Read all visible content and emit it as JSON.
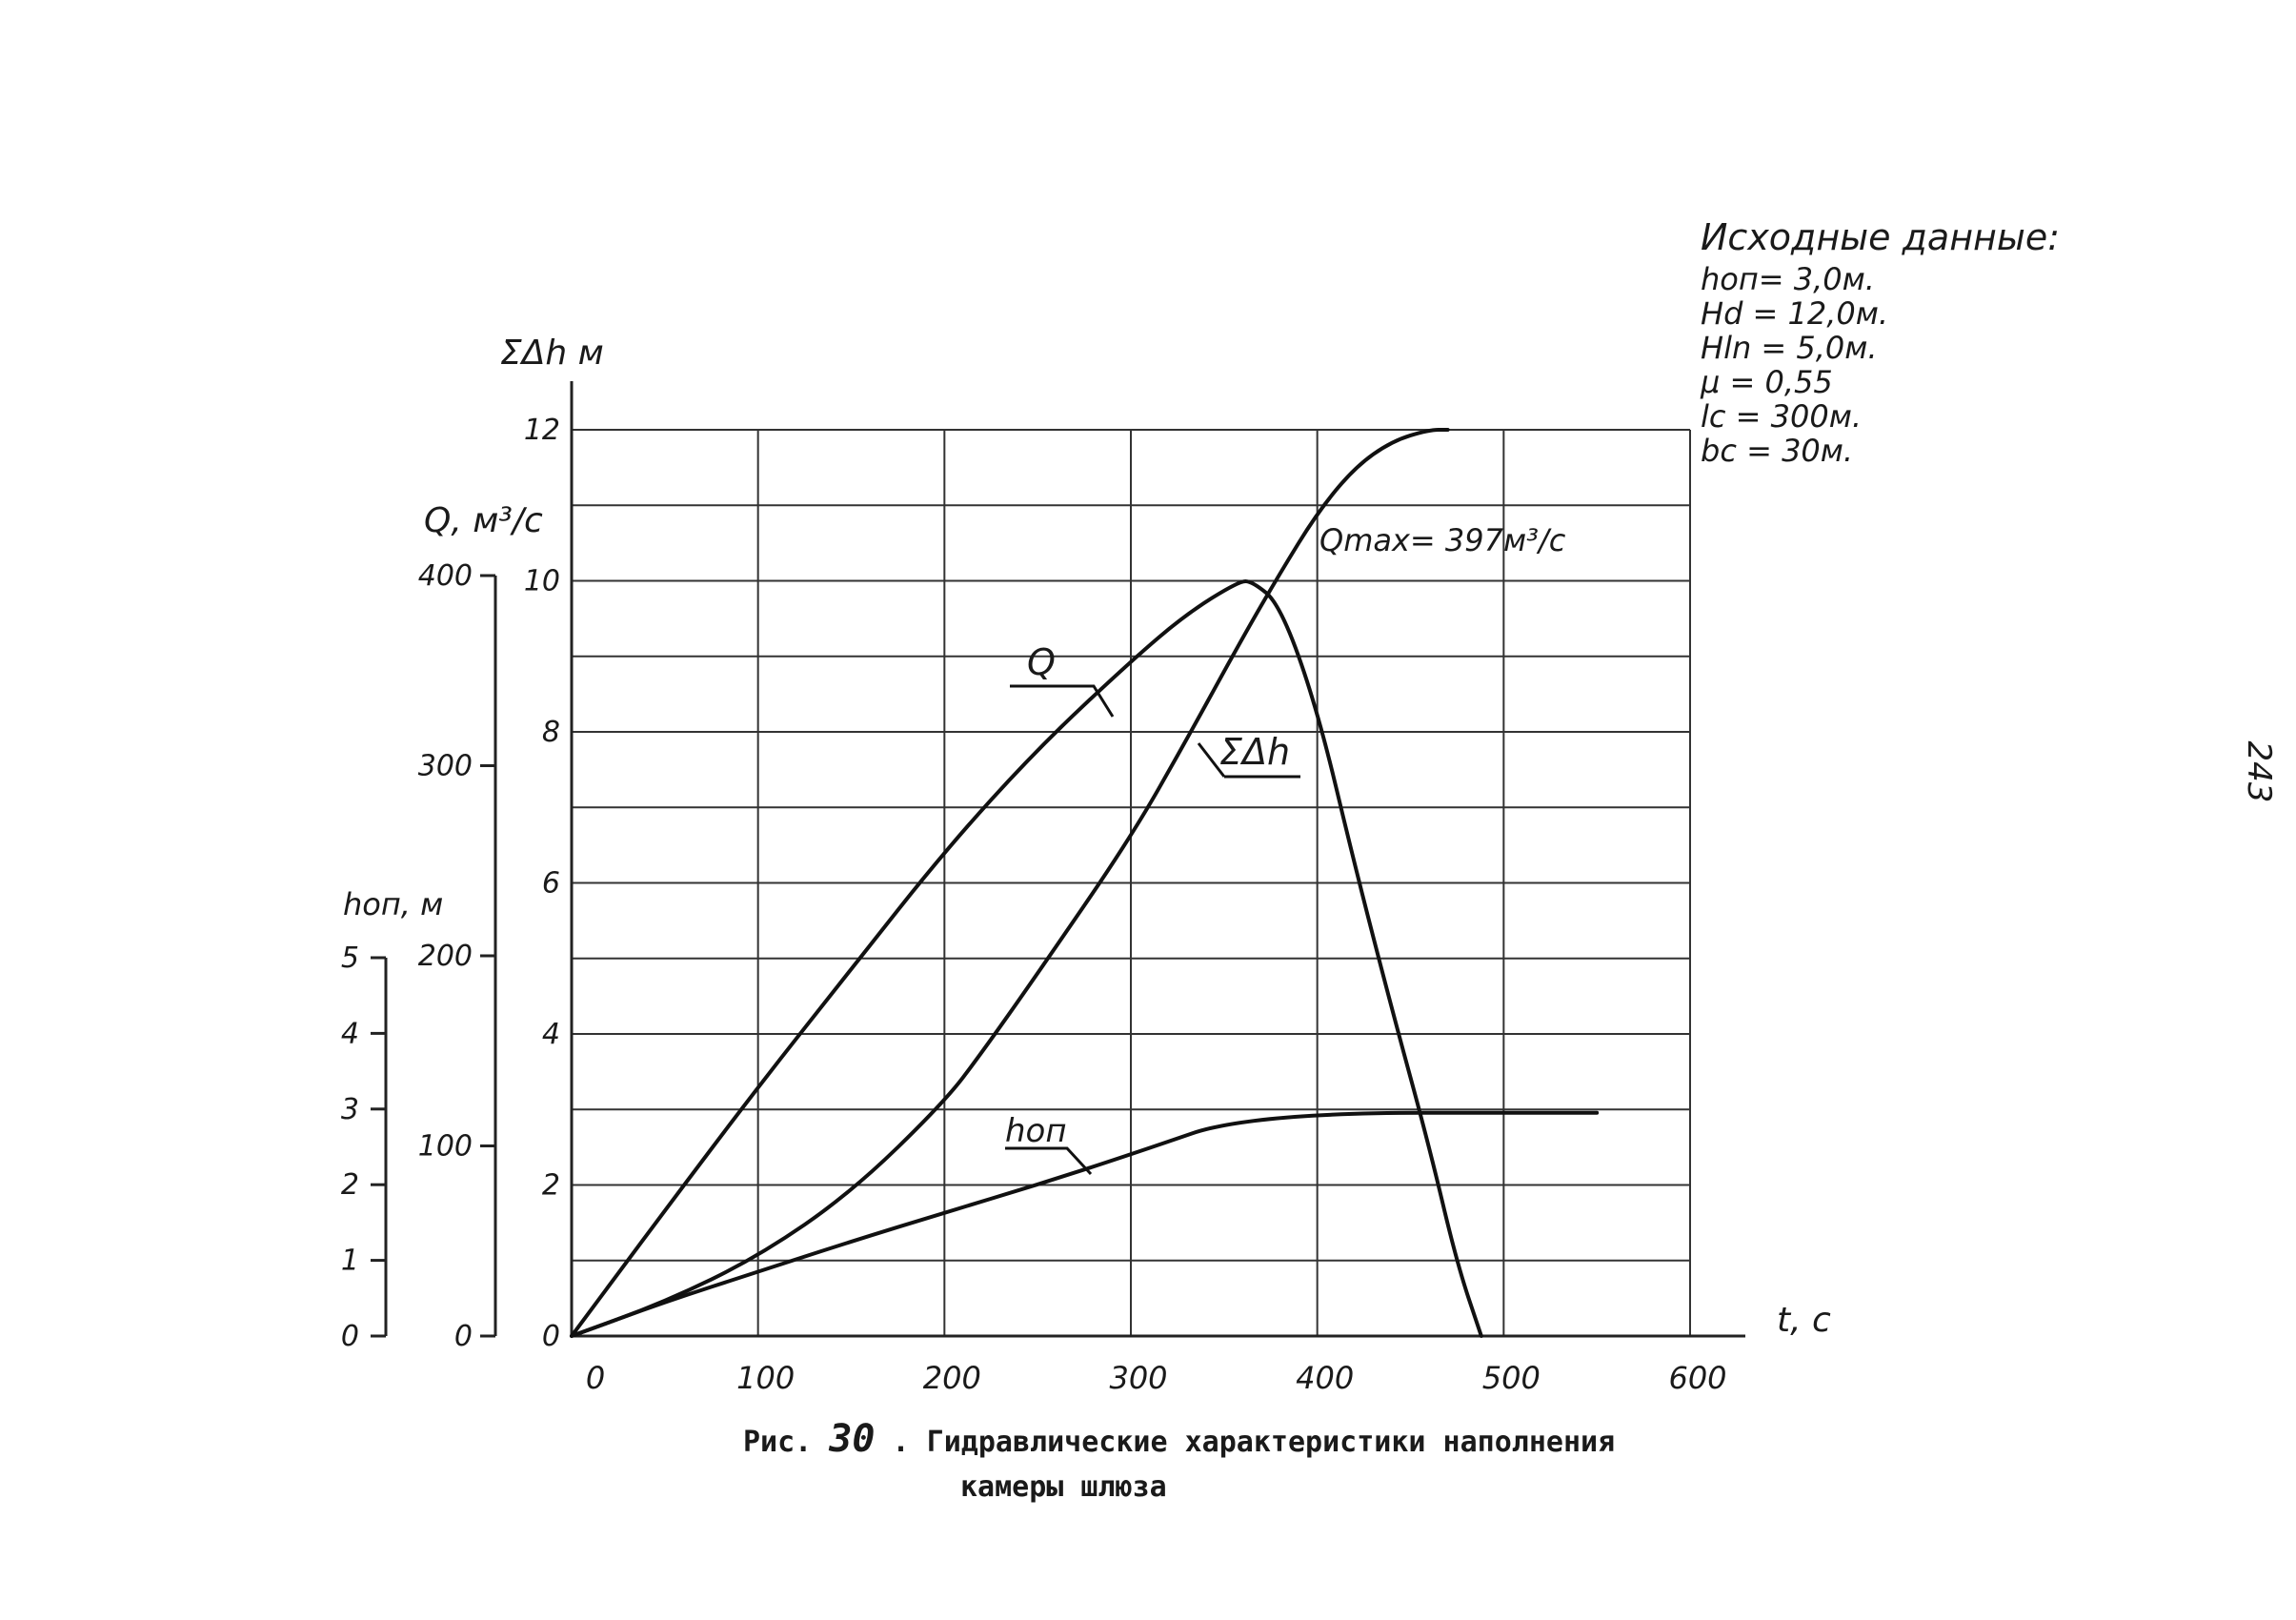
{
  "page_number": "243",
  "source_data": {
    "title": "Исходные данные:",
    "lines": [
      "hоп= 3,0м.",
      "Hd = 12,0м.",
      "Hln =  5,0м.",
      "μ = 0,55",
      "lc = 300м.",
      "bc = 30м."
    ]
  },
  "caption": {
    "line1_prefix": "Рис.",
    "figure_number": "30",
    "line1_rest": ". Гидравлические характеристики наполнения",
    "line2": "камеры шлюза"
  },
  "annotations": {
    "qmax": "Qmax= 397м³/с",
    "q_curve_label": "Q",
    "dh_curve_label": "ΣΔh",
    "hop_curve_label": "hоп"
  },
  "chart_data": {
    "type": "line",
    "x_axis": {
      "label": "t, с",
      "range": [
        0,
        600
      ],
      "ticks": [
        0,
        100,
        200,
        300,
        400,
        500,
        600
      ],
      "tick_labels": [
        "0",
        "100",
        "200",
        "300",
        "400",
        "500",
        "600"
      ]
    },
    "y_axes": [
      {
        "id": "dh",
        "label": "ΣΔh м",
        "range": [
          0,
          12
        ],
        "ticks": [
          0,
          2,
          4,
          6,
          8,
          10,
          12
        ],
        "tick_labels": [
          "0",
          "2",
          "4",
          "6",
          "8",
          "10",
          "12"
        ]
      },
      {
        "id": "q",
        "label": "Q, м³/с",
        "range": [
          0,
          400
        ],
        "ticks": [
          0,
          100,
          200,
          300,
          400
        ],
        "tick_labels": [
          "0",
          "100",
          "200",
          "300",
          "400"
        ]
      },
      {
        "id": "hop",
        "label": "hоп, м",
        "range": [
          0,
          5
        ],
        "ticks": [
          0,
          1,
          2,
          3,
          4,
          5
        ],
        "tick_labels": [
          "0",
          "1",
          "2",
          "3",
          "4",
          "5"
        ]
      }
    ],
    "grid": true,
    "series": [
      {
        "name": "Q",
        "axis": "q",
        "x": [
          0,
          50,
          100,
          150,
          200,
          250,
          300,
          330,
          358,
          365,
          380,
          400,
          420,
          440,
          460,
          475,
          488
        ],
        "y": [
          0,
          66,
          131,
          193,
          255,
          309,
          355,
          380,
          397,
          397,
          385,
          330,
          248,
          172,
          100,
          38,
          0
        ]
      },
      {
        "name": "ΣΔh",
        "axis": "dh",
        "x": [
          0,
          50,
          100,
          150,
          200,
          220,
          250,
          300,
          330,
          360,
          380,
          400,
          420,
          440,
          460,
          470
        ],
        "y": [
          0,
          0.45,
          1.05,
          1.9,
          3.1,
          3.75,
          4.8,
          6.6,
          7.9,
          9.25,
          10.1,
          10.9,
          11.5,
          11.85,
          12.0,
          12.0
        ]
      },
      {
        "name": "hоп",
        "axis": "hop",
        "x": [
          0,
          50,
          100,
          150,
          200,
          250,
          300,
          365,
          550
        ],
        "y": [
          0,
          0.45,
          0.85,
          1.25,
          1.63,
          2.0,
          2.4,
          2.95,
          2.95
        ]
      }
    ]
  }
}
